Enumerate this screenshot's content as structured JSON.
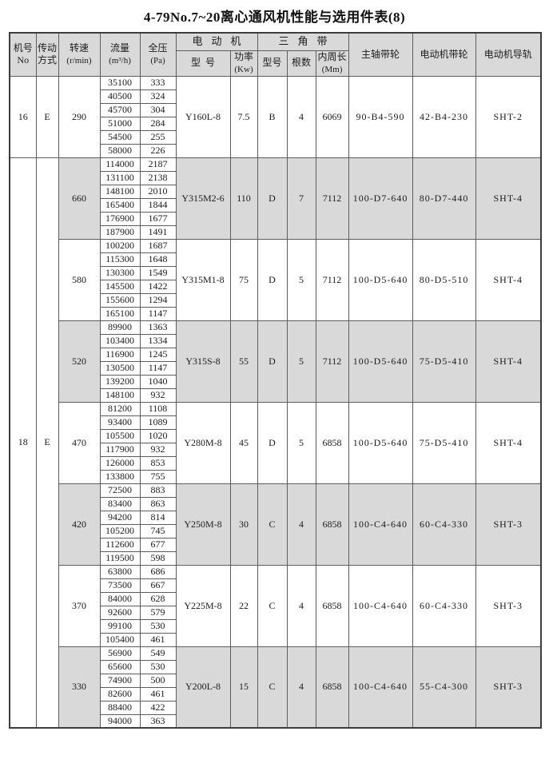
{
  "page": {
    "title": "4-79No.7~20离心通风机性能与选用件表(8)"
  },
  "colors": {
    "shaded_bg": "#d9d9d9",
    "border": "#5d5d5d",
    "outer_border": "#3d3d3d",
    "text": "#1b1b1b"
  },
  "table": {
    "headers": {
      "machine_no": [
        "机号",
        "No"
      ],
      "drive": [
        "传动",
        "方式"
      ],
      "speed": [
        "转速",
        "(r/min)"
      ],
      "flow": [
        "流量",
        "(m³/h)"
      ],
      "pressure": [
        "全压",
        "(Pa)"
      ],
      "motor_group": "电动机",
      "motor_model": "型号",
      "motor_power": [
        "功率",
        "(Kw)"
      ],
      "belt_group": "三角带",
      "belt_model": "型号",
      "belt_count": "根数",
      "belt_length": [
        "内周长",
        "(Mm)"
      ],
      "shaft_pulley": "主轴带轮",
      "motor_pulley": "电动机带轮",
      "motor_rail": "电动机导轨"
    },
    "machines": [
      {
        "no": "16",
        "drive": "E",
        "blocks": [
          {
            "speed": "290",
            "shaded": false,
            "rows": [
              [
                "35100",
                "333"
              ],
              [
                "40500",
                "324"
              ],
              [
                "45700",
                "304"
              ],
              [
                "51000",
                "284"
              ],
              [
                "54500",
                "255"
              ],
              [
                "58000",
                "226"
              ]
            ],
            "motor_model": "Y160L-8",
            "motor_power": "7.5",
            "belt_model": "B",
            "belt_count": "4",
            "belt_length": "6069",
            "shaft_pulley": "90-B4-590",
            "motor_pulley": "42-B4-230",
            "motor_rail": "SHT-2"
          }
        ]
      },
      {
        "no": "18",
        "drive": "E",
        "blocks": [
          {
            "speed": "660",
            "shaded": true,
            "rows": [
              [
                "114000",
                "2187"
              ],
              [
                "131100",
                "2138"
              ],
              [
                "148100",
                "2010"
              ],
              [
                "165400",
                "1844"
              ],
              [
                "176900",
                "1677"
              ],
              [
                "187900",
                "1491"
              ]
            ],
            "motor_model": "Y315M2-6",
            "motor_power": "110",
            "belt_model": "D",
            "belt_count": "7",
            "belt_length": "7112",
            "shaft_pulley": "100-D7-640",
            "motor_pulley": "80-D7-440",
            "motor_rail": "SHT-4"
          },
          {
            "speed": "580",
            "shaded": false,
            "rows": [
              [
                "100200",
                "1687"
              ],
              [
                "115300",
                "1648"
              ],
              [
                "130300",
                "1549"
              ],
              [
                "145500",
                "1422"
              ],
              [
                "155600",
                "1294"
              ],
              [
                "165100",
                "1147"
              ]
            ],
            "motor_model": "Y315M1-8",
            "motor_power": "75",
            "belt_model": "D",
            "belt_count": "5",
            "belt_length": "7112",
            "shaft_pulley": "100-D5-640",
            "motor_pulley": "80-D5-510",
            "motor_rail": "SHT-4"
          },
          {
            "speed": "520",
            "shaded": true,
            "rows": [
              [
                "89900",
                "1363"
              ],
              [
                "103400",
                "1334"
              ],
              [
                "116900",
                "1245"
              ],
              [
                "130500",
                "1147"
              ],
              [
                "139200",
                "1040"
              ],
              [
                "148100",
                "932"
              ]
            ],
            "motor_model": "Y315S-8",
            "motor_power": "55",
            "belt_model": "D",
            "belt_count": "5",
            "belt_length": "7112",
            "shaft_pulley": "100-D5-640",
            "motor_pulley": "75-D5-410",
            "motor_rail": "SHT-4"
          },
          {
            "speed": "470",
            "shaded": false,
            "rows": [
              [
                "81200",
                "1108"
              ],
              [
                "93400",
                "1089"
              ],
              [
                "105500",
                "1020"
              ],
              [
                "117900",
                "932"
              ],
              [
                "126000",
                "853"
              ],
              [
                "133800",
                "755"
              ]
            ],
            "motor_model": "Y280M-8",
            "motor_power": "45",
            "belt_model": "D",
            "belt_count": "5",
            "belt_length": "6858",
            "shaft_pulley": "100-D5-640",
            "motor_pulley": "75-D5-410",
            "motor_rail": "SHT-4"
          },
          {
            "speed": "420",
            "shaded": true,
            "rows": [
              [
                "72500",
                "883"
              ],
              [
                "83400",
                "863"
              ],
              [
                "94200",
                "814"
              ],
              [
                "105200",
                "745"
              ],
              [
                "112600",
                "677"
              ],
              [
                "119500",
                "598"
              ]
            ],
            "motor_model": "Y250M-8",
            "motor_power": "30",
            "belt_model": "C",
            "belt_count": "4",
            "belt_length": "6858",
            "shaft_pulley": "100-C4-640",
            "motor_pulley": "60-C4-330",
            "motor_rail": "SHT-3"
          },
          {
            "speed": "370",
            "shaded": false,
            "rows": [
              [
                "63800",
                "686"
              ],
              [
                "73500",
                "667"
              ],
              [
                "84000",
                "628"
              ],
              [
                "92600",
                "579"
              ],
              [
                "99100",
                "530"
              ],
              [
                "105400",
                "461"
              ]
            ],
            "motor_model": "Y225M-8",
            "motor_power": "22",
            "belt_model": "C",
            "belt_count": "4",
            "belt_length": "6858",
            "shaft_pulley": "100-C4-640",
            "motor_pulley": "60-C4-330",
            "motor_rail": "SHT-3"
          },
          {
            "speed": "330",
            "shaded": true,
            "rows": [
              [
                "56900",
                "549"
              ],
              [
                "65600",
                "530"
              ],
              [
                "74900",
                "500"
              ],
              [
                "82600",
                "461"
              ],
              [
                "88400",
                "422"
              ],
              [
                "94000",
                "363"
              ]
            ],
            "motor_model": "Y200L-8",
            "motor_power": "15",
            "belt_model": "C",
            "belt_count": "4",
            "belt_length": "6858",
            "shaft_pulley": "100-C4-640",
            "motor_pulley": "55-C4-300",
            "motor_rail": "SHT-3"
          }
        ]
      }
    ]
  }
}
